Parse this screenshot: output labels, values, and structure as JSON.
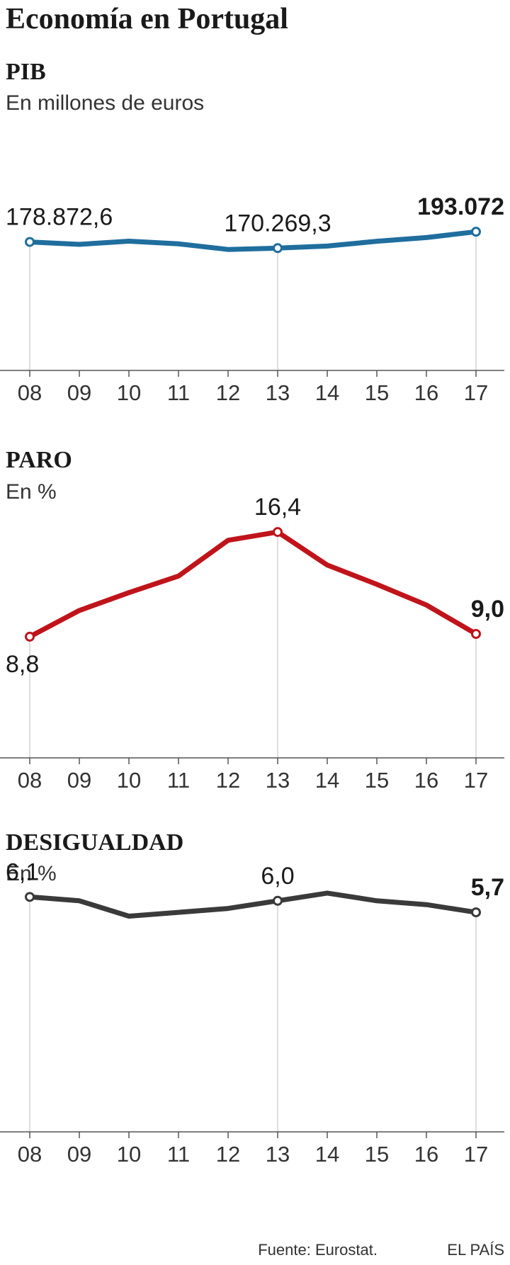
{
  "title": "Economía en Portugal",
  "footer": {
    "source": "Fuente: Eurostat.",
    "brand": "EL PAÍS"
  },
  "chart_data": [
    {
      "type": "line",
      "title": "PIB",
      "subtitle": "En millones de euros",
      "color": "#1f6e9e",
      "x": [
        "08",
        "09",
        "10",
        "11",
        "12",
        "13",
        "14",
        "15",
        "16",
        "17"
      ],
      "values": [
        178872.6,
        175450,
        179930,
        176170,
        168400,
        170269.3,
        173080,
        179810,
        184930,
        193072
      ],
      "ylim": [
        0,
        210000
      ],
      "labels": [
        {
          "index": 0,
          "text": "178.872,6",
          "bold": false,
          "pos": "above"
        },
        {
          "index": 5,
          "text": "170.269,3",
          "bold": false,
          "pos": "above"
        },
        {
          "index": 9,
          "text": "193.072",
          "bold": true,
          "pos": "above"
        }
      ],
      "markers": [
        0,
        5,
        9
      ]
    },
    {
      "type": "line",
      "title": "PARO",
      "subtitle": "En %",
      "color": "#c0141b",
      "x": [
        "08",
        "09",
        "10",
        "11",
        "12",
        "13",
        "14",
        "15",
        "16",
        "17"
      ],
      "values": [
        8.8,
        10.7,
        12.0,
        13.2,
        15.8,
        16.4,
        14.0,
        12.6,
        11.1,
        9.0
      ],
      "ylim": [
        0,
        18
      ],
      "labels": [
        {
          "index": 0,
          "text": "8,8",
          "bold": false,
          "pos": "below"
        },
        {
          "index": 5,
          "text": "16,4",
          "bold": false,
          "pos": "above"
        },
        {
          "index": 9,
          "text": "9,0",
          "bold": true,
          "pos": "above"
        }
      ],
      "markers": [
        0,
        5,
        9
      ]
    },
    {
      "type": "line",
      "title": "DESIGUALDAD",
      "subtitle": "En %",
      "color": "#3a3a3a",
      "x": [
        "08",
        "09",
        "10",
        "11",
        "12",
        "13",
        "14",
        "15",
        "16",
        "17"
      ],
      "values": [
        6.1,
        6.0,
        5.6,
        5.7,
        5.8,
        6.0,
        6.2,
        6.0,
        5.9,
        5.7
      ],
      "ylim": [
        0,
        6.4
      ],
      "labels": [
        {
          "index": 0,
          "text": "6,1",
          "bold": false,
          "pos": "above"
        },
        {
          "index": 5,
          "text": "6,0",
          "bold": false,
          "pos": "above"
        },
        {
          "index": 9,
          "text": "5,7",
          "bold": true,
          "pos": "above"
        }
      ],
      "markers": [
        0,
        5,
        9
      ]
    }
  ]
}
